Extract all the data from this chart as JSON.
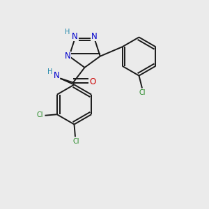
{
  "bg_color": "#ebebeb",
  "bond_color": "#1a1a1a",
  "N_color": "#0000cc",
  "O_color": "#cc0000",
  "Cl_color": "#228822",
  "H_color": "#2288aa",
  "font_size": 8.5,
  "small_font": 7.0,
  "lw": 1.4,
  "xlim": [
    0,
    10
  ],
  "ylim": [
    0,
    10
  ]
}
